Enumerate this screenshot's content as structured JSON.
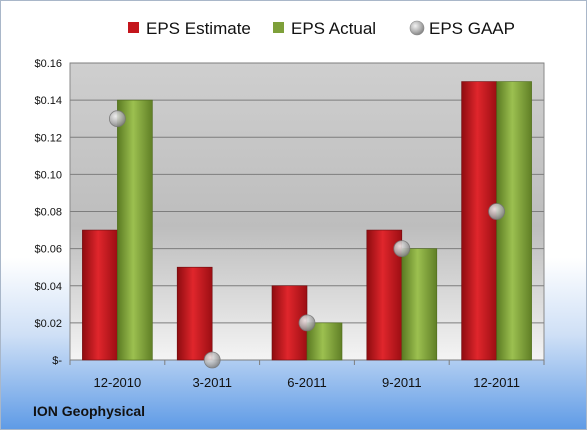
{
  "company_label": "ION Geophysical",
  "chart_data": {
    "type": "bar",
    "categories": [
      "12-2010",
      "3-2011",
      "6-2011",
      "9-2011",
      "12-2011"
    ],
    "series": [
      {
        "name": "EPS Estimate",
        "kind": "bar",
        "color": "#c4151c",
        "values": [
          0.07,
          0.05,
          0.04,
          0.07,
          0.15
        ]
      },
      {
        "name": "EPS Actual",
        "kind": "bar",
        "color": "#7ea03a",
        "values": [
          0.14,
          0.0,
          0.02,
          0.06,
          0.15
        ]
      },
      {
        "name": "EPS GAAP",
        "kind": "marker",
        "color": "#b9b9b9",
        "values": [
          0.13,
          0.0,
          0.02,
          0.06,
          0.08
        ]
      }
    ],
    "ylim": [
      0,
      0.16
    ],
    "y_ticks": [
      0,
      0.02,
      0.04,
      0.06,
      0.08,
      0.1,
      0.12,
      0.14,
      0.16
    ],
    "y_tick_labels": [
      "$-",
      "$0.02",
      "$0.04",
      "$0.06",
      "$0.08",
      "$0.10",
      "$0.12",
      "$0.14",
      "$0.16"
    ],
    "grid": true,
    "legend_position": "top"
  }
}
